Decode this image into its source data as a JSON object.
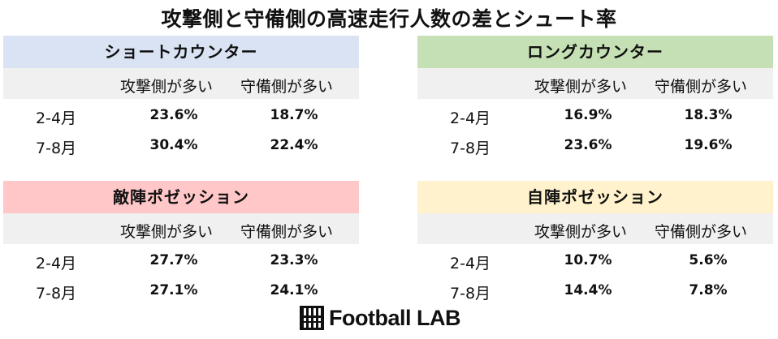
{
  "title": "攻撃側と守備側の高速走行人数の差とシュート率",
  "columns": {
    "attack": "攻撃側が多い",
    "defense": "守備側が多い"
  },
  "chart_data": {
    "type": "table",
    "title": "攻撃側と守備側の高速走行人数の差とシュート率",
    "tables": [
      {
        "name": "ショートカウンター",
        "header_color": "#dae3f3",
        "rows": [
          {
            "period": "2-4月",
            "attack": "23.6%",
            "defense": "18.7%"
          },
          {
            "period": "7-8月",
            "attack": "30.4%",
            "defense": "22.4%"
          }
        ]
      },
      {
        "name": "ロングカウンター",
        "header_color": "#c5e0b4",
        "rows": [
          {
            "period": "2-4月",
            "attack": "16.9%",
            "defense": "18.3%"
          },
          {
            "period": "7-8月",
            "attack": "23.6%",
            "defense": "19.6%"
          }
        ]
      },
      {
        "name": "敵陣ポゼッション",
        "header_color": "#ffc7c7",
        "rows": [
          {
            "period": "2-4月",
            "attack": "27.7%",
            "defense": "23.3%"
          },
          {
            "period": "7-8月",
            "attack": "27.1%",
            "defense": "24.1%"
          }
        ]
      },
      {
        "name": "自陣ポゼッション",
        "header_color": "#fff2cc",
        "rows": [
          {
            "period": "2-4月",
            "attack": "10.7%",
            "defense": "5.6%"
          },
          {
            "period": "7-8月",
            "attack": "14.4%",
            "defense": "7.8%"
          }
        ]
      }
    ]
  },
  "logo": {
    "text": "Football LAB",
    "icon": "football-lab-logo-icon",
    "color": "#111111"
  }
}
